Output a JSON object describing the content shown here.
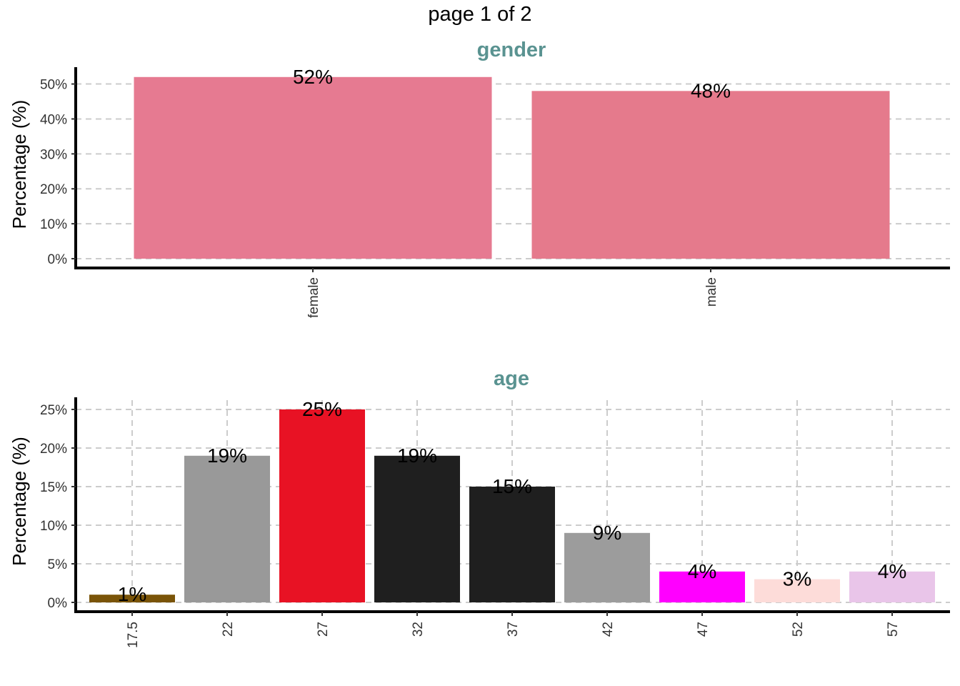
{
  "page": {
    "title": "page 1 of 2"
  },
  "colors": {
    "panel_title": "#5a9391",
    "grid": "#cccccc",
    "axis": "#000000"
  },
  "chart_data": [
    {
      "type": "bar",
      "title": "gender",
      "ylabel": "Percentage (%)",
      "xlabel": "",
      "categories": [
        "female",
        "male"
      ],
      "values": [
        52,
        48
      ],
      "labels": [
        "52%",
        "48%"
      ],
      "colors": [
        "#e67a91",
        "#e57a8c"
      ],
      "ylim": [
        0,
        54
      ],
      "yticks": [
        0,
        10,
        20,
        30,
        40,
        50
      ],
      "ytick_labels": [
        "0%",
        "10%",
        "20%",
        "30%",
        "40%",
        "50%"
      ],
      "grid": {
        "horizontal": true,
        "vertical": false,
        "style": "dashed"
      }
    },
    {
      "type": "bar",
      "title": "age",
      "ylabel": "Percentage (%)",
      "xlabel": "",
      "categories": [
        "17.5",
        "22",
        "27",
        "32",
        "37",
        "42",
        "47",
        "52",
        "57"
      ],
      "values": [
        1,
        19,
        25,
        19,
        15,
        9,
        4,
        3,
        4
      ],
      "labels": [
        "1%",
        "19%",
        "25%",
        "19%",
        "15%",
        "9%",
        "4%",
        "3%",
        "4%"
      ],
      "colors": [
        "#7a5408",
        "#999999",
        "#e81224",
        "#1f1f1f",
        "#1f1f1f",
        "#9c9c9c",
        "#ff00ff",
        "#fddcd9",
        "#e9c5e9"
      ],
      "ylim": [
        0,
        26.2
      ],
      "yticks": [
        0,
        5,
        10,
        15,
        20,
        25
      ],
      "ytick_labels": [
        "0%",
        "5%",
        "10%",
        "15%",
        "20%",
        "25%"
      ],
      "grid": {
        "horizontal": true,
        "vertical": true,
        "style": "dashed"
      }
    }
  ]
}
